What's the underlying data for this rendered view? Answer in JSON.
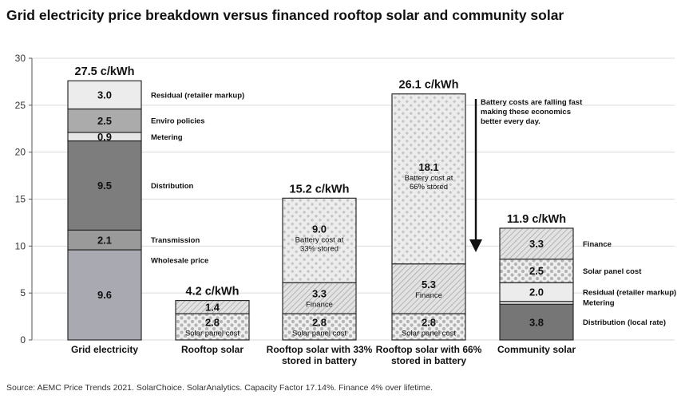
{
  "title": "Grid electricity price breakdown versus financed rooftop solar and community solar",
  "source": "Source: AEMC Price Trends 2021. SolarChoice. SolarAnalytics. Capacity Factor 17.14%. Finance 4% over lifetime.",
  "note": [
    "Battery costs are falling fast",
    "making these economics",
    "better every day."
  ],
  "colors": {
    "wholesale": "#a9a9b2",
    "transmission": "#9a9a9a",
    "distribution": "#7d7d7d",
    "metering": "#e6e6e6",
    "enviro": "#ababab",
    "residual": "#ececec",
    "solar_panel": "#e9e9e9",
    "finance": "#dcdcdc",
    "battery": "#e4e4e4",
    "distribution_local": "#767676"
  },
  "chart_data": {
    "type": "bar",
    "stacked": true,
    "ylim": [
      0,
      30
    ],
    "yticks": [
      0,
      5,
      10,
      15,
      20,
      25,
      30
    ],
    "grid": true,
    "bars": [
      {
        "category": "Grid electricity",
        "total_label": "27.5 c/kWh",
        "segments": [
          {
            "name": "Wholesale price",
            "value": 9.6,
            "label": "9.6",
            "fill": "wholesale",
            "legend": "Wholesale price"
          },
          {
            "name": "Transmission",
            "value": 2.1,
            "label": "2.1",
            "fill": "transmission",
            "legend": "Transmission"
          },
          {
            "name": "Distribution",
            "value": 9.5,
            "label": "9.5",
            "fill": "distribution",
            "legend": "Distribution"
          },
          {
            "name": "Metering",
            "value": 0.9,
            "label": "0.9",
            "fill": "metering",
            "legend": "Metering"
          },
          {
            "name": "Enviro policies",
            "value": 2.5,
            "label": "2.5",
            "fill": "enviro",
            "legend": "Enviro policies"
          },
          {
            "name": "Residual (retailer markup)",
            "value": 3.0,
            "label": "3.0",
            "fill": "residual",
            "legend": "Residual (retailer markup)"
          }
        ]
      },
      {
        "category": "Rooftop solar",
        "total_label": "4.2 c/kWh",
        "segments": [
          {
            "name": "Solar panel cost",
            "value": 2.8,
            "label": "2.8",
            "sub": "Solar panel cost",
            "fill": "solar_panel"
          },
          {
            "name": "Finance",
            "value": 1.4,
            "label": "1.4",
            "fill": "finance"
          }
        ]
      },
      {
        "category": "Rooftop solar with 33% stored in battery",
        "category_lines": [
          "Rooftop solar with 33%",
          "stored in battery"
        ],
        "total_label": "15.2 c/kWh",
        "segments": [
          {
            "name": "Solar panel cost",
            "value": 2.8,
            "label": "2.8",
            "sub": "Solar panel cost",
            "fill": "solar_panel"
          },
          {
            "name": "Finance",
            "value": 3.3,
            "label": "3.3",
            "sub": "Finance",
            "fill": "finance"
          },
          {
            "name": "Battery cost at 33% stored",
            "value": 9.0,
            "label": "9.0",
            "sub": "Battery cost at",
            "sub2": "33% stored",
            "fill": "battery"
          }
        ]
      },
      {
        "category": "Rooftop solar with 66% stored in battery",
        "category_lines": [
          "Rooftop solar with 66%",
          "stored in battery"
        ],
        "total_label": "26.1 c/kWh",
        "segments": [
          {
            "name": "Solar panel cost",
            "value": 2.8,
            "label": "2.8",
            "sub": "Solar panel cost",
            "fill": "solar_panel"
          },
          {
            "name": "Finance",
            "value": 5.3,
            "label": "5.3",
            "sub": "Finance",
            "fill": "finance"
          },
          {
            "name": "Battery cost at 66% stored",
            "value": 18.1,
            "label": "18.1",
            "sub": "Battery cost at",
            "sub2": "66% stored",
            "fill": "battery"
          }
        ]
      },
      {
        "category": "Community solar",
        "total_label": "11.9 c/kWh",
        "segments": [
          {
            "name": "Distribution (local rate)",
            "value": 3.8,
            "label": "3.8",
            "fill": "distribution_local",
            "legend": "Distribution (local rate)"
          },
          {
            "name": "Metering",
            "value": 0.3,
            "label": "",
            "fill": "metering",
            "legend": "Metering"
          },
          {
            "name": "Residual (retailer markup)",
            "value": 2.0,
            "label": "2.0",
            "fill": "residual",
            "legend": "Residual (retailer markup)"
          },
          {
            "name": "Solar panel cost",
            "value": 2.5,
            "label": "2.5",
            "fill": "solar_panel",
            "legend": "Solar panel cost"
          },
          {
            "name": "Finance",
            "value": 3.3,
            "label": "3.3",
            "fill": "finance",
            "legend": "Finance"
          }
        ]
      }
    ]
  }
}
